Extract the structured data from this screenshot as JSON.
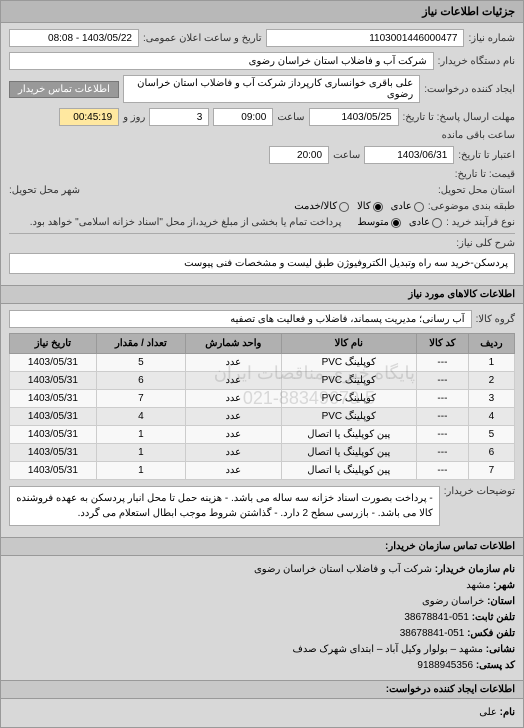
{
  "header": {
    "title": "جزئیات اطلاعات نیاز"
  },
  "top": {
    "number_label": "شماره نیاز:",
    "number_value": "1103001446000477",
    "announce_label": "تاریخ و ساعت اعلان عمومی:",
    "announce_value": "1403/05/22 - 08:08",
    "org_label": "نام دستگاه خریدار:",
    "org_value": "شرکت آب و فاضلاب استان خراسان رضوی",
    "requester_label": "ایجاد کننده درخواست:",
    "requester_value": "علی باقری خوانساری کارپرداز شرکت آب و فاضلاب استان خراسان رضوی",
    "contact_btn": "اطلاعات تماس خریدار",
    "deadline_send_label": "مهلت ارسال پاسخ: تا تاریخ:",
    "deadline_send_date": "1403/05/25",
    "time_label": "ساعت",
    "deadline_send_time": "09:00",
    "days_left": "3",
    "days_label": "روز و",
    "time_left": "00:45:19",
    "time_left_label": "ساعت باقی مانده",
    "validity_label": "اعتبار تا تاریخ:",
    "validity_date": "1403/06/31",
    "validity_time": "20:00",
    "price_label": "قیمت: تا تاریخ:",
    "delivery_province_label": "استان محل تحویل:",
    "delivery_city_label": "شهر محل تحویل:",
    "pkg_label": "طبقه بندی موضوعی:",
    "pkg_opts": {
      "a": "عادی",
      "b": "کالا",
      "c": "کالا/خدمت"
    },
    "type_label": "نوع فرآیند خرید :",
    "type_opts": {
      "a": "عادی",
      "b": "متوسط"
    },
    "type_note": "پرداخت تمام یا بخشی از مبلغ خرید،از محل \"اسناد خزانه اسلامی\" خواهد بود."
  },
  "desc": {
    "label": "شرح کلی نیاز:",
    "value": "پردسکن-خرید سه راه وتبدیل الکتروفیوژن طبق لیست و مشخصات فنی پیوست"
  },
  "goods": {
    "header": "اطلاعات کالاهای مورد نیاز",
    "group_label": "گروه کالا:",
    "group_value": "آب رسانی؛ مدیریت پسماند، فاضلاب و فعالیت های تصفیه",
    "columns": [
      "ردیف",
      "کد کالا",
      "نام کالا",
      "واحد شمارش",
      "تعداد / مقدار",
      "تاریخ نیاز"
    ],
    "rows": [
      [
        "1",
        "---",
        "کوپلینگ PVC",
        "عدد",
        "5",
        "1403/05/31"
      ],
      [
        "2",
        "---",
        "کوپلینگ PVC",
        "عدد",
        "6",
        "1403/05/31"
      ],
      [
        "3",
        "---",
        "کوپلینگ PVC",
        "عدد",
        "7",
        "1403/05/31"
      ],
      [
        "4",
        "---",
        "کوپلینگ PVC",
        "عدد",
        "4",
        "1403/05/31"
      ],
      [
        "5",
        "---",
        "پین کوپلینگ یا اتصال",
        "عدد",
        "1",
        "1403/05/31"
      ],
      [
        "6",
        "---",
        "پین کوپلینگ یا اتصال",
        "عدد",
        "1",
        "1403/05/31"
      ],
      [
        "7",
        "---",
        "پین کوپلینگ یا اتصال",
        "عدد",
        "1",
        "1403/05/31"
      ]
    ],
    "watermark1": "پایگاه خبری مناقصات ایران",
    "watermark2": "021-88349670-5"
  },
  "notes": {
    "label": "توضیحات خریدار:",
    "text": "- پرداخت بصورت اسناد خزانه سه ساله می باشد. - هزینه حمل تا محل انبار پردسکن به عهده فروشنده کالا می باشد. - بازرسی سطح 2 دارد. - گذاشتن شروط موجب ابطال استعلام می گردد."
  },
  "contact": {
    "header": "اطلاعات تماس سازمان خریدار:",
    "org_label": "نام سازمان خریدار:",
    "org_value": "شرکت آب و فاضلاب استان خراسان رضوی",
    "city_label": "شهر:",
    "city_value": "مشهد",
    "province_label": "استان:",
    "province_value": "خراسان رضوی",
    "phone_label": "تلفن ثابت:",
    "phone_value": "051-38678841",
    "fax_label": "تلفن فکس:",
    "fax_value": "051-38678841",
    "address_label": "نشانی:",
    "address_value": "مشهد – بولوار وکیل آباد – ابتدای شهرک صدف",
    "postal_label": "کد پستی:",
    "postal_value": "9188945356",
    "creator_header": "اطلاعات ایجاد کننده درخواست:",
    "name_label": "نام:",
    "name_value": "علی"
  }
}
